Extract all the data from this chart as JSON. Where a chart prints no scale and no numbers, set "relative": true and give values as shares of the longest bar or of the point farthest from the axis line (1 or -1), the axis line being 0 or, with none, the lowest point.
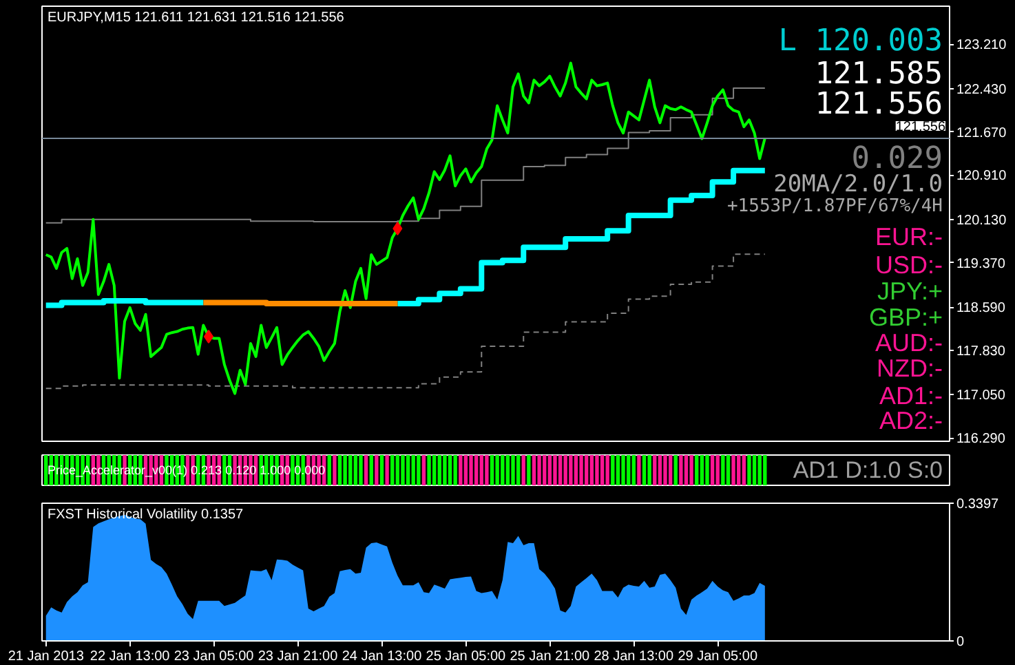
{
  "chart_data": [
    {
      "type": "line",
      "title": "EURJPY,M15  121.611 121.631 121.516 121.556",
      "tick_labels": "y",
      "grid": false,
      "categories": [
        null,
        null,
        null,
        null,
        null,
        null,
        null,
        null,
        null,
        null,
        null,
        null,
        null,
        null,
        null,
        null,
        null,
        null,
        null,
        null,
        null,
        null,
        null,
        null,
        null,
        null,
        null,
        null,
        null,
        null,
        null,
        null,
        null,
        null,
        null,
        null,
        null,
        null,
        null,
        null,
        null,
        null,
        null,
        null,
        null,
        null,
        null,
        null,
        null,
        null,
        null,
        null,
        null,
        null,
        null,
        null,
        null,
        null,
        null,
        null,
        null,
        null,
        null,
        null,
        null,
        null,
        null,
        null,
        null,
        null,
        null,
        null,
        null,
        null,
        null,
        null,
        null,
        null,
        null,
        null,
        null,
        null,
        null,
        null,
        null,
        null,
        null,
        null,
        null,
        null,
        null,
        null,
        null,
        null,
        null,
        null,
        null,
        null,
        null,
        null,
        null,
        null,
        null,
        null,
        null,
        null,
        null,
        null,
        null,
        null,
        null,
        null,
        null,
        null,
        null,
        null,
        null,
        null,
        null,
        null,
        null,
        null,
        null,
        null,
        null,
        null,
        null,
        null,
        null,
        null,
        null,
        null,
        null,
        null,
        null,
        null,
        null,
        null
      ],
      "ylim": [
        116.23,
        123.88
      ],
      "yticks": [
        {
          "value": 123.21,
          "label": "123.210"
        },
        {
          "value": 122.43,
          "label": "122.430"
        },
        {
          "value": 121.67,
          "label": "121.670"
        },
        {
          "value": 120.91,
          "label": "120.910"
        },
        {
          "value": 120.13,
          "label": "120.130"
        },
        {
          "value": 119.37,
          "label": "119.370"
        },
        {
          "value": 118.59,
          "label": "118.590"
        },
        {
          "value": 117.83,
          "label": "117.830"
        },
        {
          "value": 117.05,
          "label": "117.050"
        },
        {
          "value": 116.29,
          "label": "116.290"
        }
      ],
      "ref_lines": [
        {
          "axis": "y",
          "value": 121.556,
          "label": "121.556",
          "color": "#778899"
        }
      ],
      "annotations": [
        "L 120.003",
        "121.585",
        "121.556",
        "0.029",
        "20MA/2.0/1.0",
        "+1553P/1.87PF/67%/4H",
        "EUR:-",
        "USD:-",
        "JPY:+",
        "GBP:+",
        "AUD:-",
        "NZD:-",
        "AD1:-",
        "AD2:-"
      ],
      "series": [
        {
          "type": "step",
          "color": "#808080",
          "line_style": "solid",
          "values": [
            120.07,
            120.07,
            120.07,
            120.13,
            120.13,
            120.13,
            120.13,
            120.13,
            120.13,
            120.13,
            120.13,
            120.13,
            120.13,
            120.13,
            120.13,
            120.13,
            120.13,
            120.13,
            120.13,
            120.13,
            120.13,
            120.13,
            120.13,
            120.13,
            120.13,
            120.13,
            120.13,
            120.13,
            120.13,
            120.13,
            120.13,
            120.13,
            120.13,
            120.13,
            120.13,
            120.13,
            120.13,
            120.13,
            120.13,
            120.1,
            120.1,
            120.1,
            120.1,
            120.1,
            120.1,
            120.1,
            120.1,
            120.1,
            120.1,
            120.1,
            120.1,
            120.09,
            120.09,
            120.09,
            120.09,
            120.09,
            120.09,
            120.09,
            120.09,
            120.09,
            120.09,
            120.09,
            120.09,
            120.09,
            120.09,
            120.09,
            120.09,
            120.1,
            120.1,
            120.1,
            120.1,
            120.15,
            120.15,
            120.15,
            120.15,
            120.29,
            120.29,
            120.29,
            120.29,
            120.36,
            120.36,
            120.36,
            120.36,
            120.82,
            120.82,
            120.82,
            120.82,
            120.82,
            120.82,
            120.82,
            120.82,
            121.06,
            121.06,
            121.06,
            121.06,
            121.08,
            121.08,
            121.08,
            121.08,
            121.22,
            121.22,
            121.22,
            121.22,
            121.27,
            121.27,
            121.27,
            121.27,
            121.38,
            121.38,
            121.38,
            121.38,
            121.66,
            121.66,
            121.66,
            121.66,
            121.69,
            121.69,
            121.69,
            121.69,
            121.92,
            121.92,
            121.92,
            121.92,
            121.97,
            121.97,
            121.97,
            121.97,
            122.26,
            122.26,
            122.26,
            122.26,
            122.44,
            122.44,
            122.44,
            122.44,
            122.44,
            122.44,
            122.44
          ]
        },
        {
          "type": "step",
          "color": "#808080",
          "line_style": "dashed",
          "values": [
            117.16,
            117.16,
            117.16,
            117.2,
            117.2,
            117.2,
            117.2,
            117.22,
            117.22,
            117.22,
            117.22,
            117.22,
            117.22,
            117.22,
            117.22,
            117.22,
            117.22,
            117.22,
            117.22,
            117.22,
            117.22,
            117.22,
            117.22,
            117.22,
            117.22,
            117.22,
            117.22,
            117.22,
            117.22,
            117.22,
            117.22,
            117.2,
            117.2,
            117.2,
            117.2,
            117.2,
            117.2,
            117.2,
            117.2,
            117.2,
            117.2,
            117.2,
            117.2,
            117.2,
            117.2,
            117.2,
            117.2,
            117.17,
            117.17,
            117.17,
            117.17,
            117.17,
            117.17,
            117.17,
            117.17,
            117.17,
            117.17,
            117.17,
            117.17,
            117.17,
            117.17,
            117.17,
            117.17,
            117.17,
            117.17,
            117.17,
            117.17,
            117.17,
            117.17,
            117.17,
            117.17,
            117.24,
            117.24,
            117.24,
            117.24,
            117.36,
            117.36,
            117.36,
            117.36,
            117.45,
            117.45,
            117.45,
            117.45,
            117.9,
            117.9,
            117.9,
            117.9,
            117.9,
            117.9,
            117.9,
            117.9,
            118.15,
            118.15,
            118.15,
            118.15,
            118.15,
            118.15,
            118.15,
            118.15,
            118.33,
            118.33,
            118.33,
            118.33,
            118.33,
            118.33,
            118.33,
            118.33,
            118.48,
            118.48,
            118.48,
            118.48,
            118.73,
            118.73,
            118.73,
            118.73,
            118.78,
            118.78,
            118.78,
            118.78,
            118.99,
            118.99,
            118.99,
            118.99,
            119.03,
            119.03,
            119.03,
            119.03,
            119.31,
            119.31,
            119.31,
            119.31,
            119.52,
            119.52,
            119.52,
            119.52,
            119.52,
            119.52,
            119.52
          ]
        },
        {
          "color": "#00ff00",
          "line_style": "solid",
          "values": [
            119.51,
            119.47,
            119.27,
            119.55,
            119.62,
            119.09,
            119.44,
            118.97,
            119.2,
            120.13,
            118.81,
            119.04,
            119.34,
            118.97,
            117.34,
            118.34,
            118.58,
            118.3,
            118.18,
            118.46,
            117.72,
            117.8,
            117.88,
            118.11,
            118.14,
            118.16,
            118.2,
            118.22,
            118.23,
            117.76,
            118.27,
            118.07,
            118.04,
            118.04,
            117.58,
            117.3,
            117.07,
            117.48,
            117.23,
            117.95,
            117.72,
            118.27,
            117.88,
            118.05,
            118.23,
            117.58,
            117.75,
            117.88,
            118.0,
            118.1,
            118.16,
            118.04,
            117.9,
            117.65,
            117.81,
            117.95,
            118.51,
            118.88,
            118.58,
            119.04,
            119.27,
            118.74,
            119.51,
            119.34,
            119.4,
            119.46,
            119.81,
            119.97,
            120.2,
            120.37,
            120.51,
            120.13,
            120.32,
            120.6,
            120.97,
            120.83,
            121.0,
            121.25,
            120.72,
            120.9,
            121.02,
            120.79,
            120.95,
            121.06,
            121.37,
            121.53,
            122.13,
            121.88,
            121.65,
            122.46,
            122.69,
            122.3,
            122.18,
            122.58,
            122.48,
            122.55,
            122.65,
            122.46,
            122.3,
            122.53,
            122.88,
            122.46,
            122.35,
            122.25,
            122.58,
            122.48,
            122.5,
            122.53,
            122.13,
            121.83,
            121.65,
            122.02,
            121.95,
            121.88,
            122.23,
            122.58,
            122.11,
            121.83,
            122.13,
            122.08,
            122.06,
            122.11,
            122.06,
            122.02,
            121.79,
            121.55,
            121.83,
            122.13,
            122.3,
            122.41,
            122.13,
            122.05,
            122.02,
            121.76,
            121.88,
            121.65,
            121.2,
            121.56
          ]
        },
        {
          "type": "step",
          "color": "#00ffff",
          "line_style": "solid",
          "values": [
            118.62,
            118.62,
            118.62,
            118.67,
            118.67,
            118.67,
            118.67,
            118.67,
            118.67,
            118.67,
            118.67,
            118.7,
            118.7,
            118.7,
            118.7,
            118.7,
            118.7,
            118.7,
            118.7,
            118.67,
            118.67,
            118.67,
            118.67,
            118.67,
            118.67,
            118.67,
            118.67,
            118.67,
            118.67,
            118.67,
            118.67,
            null,
            null,
            null,
            null,
            null,
            null,
            null,
            null,
            null,
            null,
            null,
            null,
            null,
            null,
            null,
            null,
            null,
            null,
            null,
            null,
            null,
            null,
            null,
            null,
            null,
            null,
            null,
            null,
            null,
            null,
            null,
            null,
            null,
            null,
            null,
            null,
            118.65,
            118.65,
            118.65,
            118.65,
            118.72,
            118.72,
            118.72,
            118.72,
            118.83,
            118.83,
            118.83,
            118.83,
            118.91,
            118.91,
            118.91,
            118.91,
            119.37,
            119.37,
            119.37,
            119.37,
            119.41,
            119.41,
            119.41,
            119.41,
            119.64,
            119.64,
            119.64,
            119.64,
            119.64,
            119.64,
            119.64,
            119.64,
            119.79,
            119.79,
            119.79,
            119.79,
            119.79,
            119.79,
            119.79,
            119.79,
            119.93,
            119.93,
            119.93,
            119.93,
            120.2,
            120.2,
            120.2,
            120.2,
            120.2,
            120.2,
            120.2,
            120.2,
            120.47,
            120.47,
            120.47,
            120.47,
            120.55,
            120.55,
            120.55,
            120.55,
            120.79,
            120.79,
            120.79,
            120.79,
            120.99,
            120.99,
            120.99,
            120.99,
            120.99,
            120.99,
            120.99
          ]
        },
        {
          "type": "step",
          "color": "#ff8c00",
          "line_style": "solid",
          "values": [
            null,
            null,
            null,
            null,
            null,
            null,
            null,
            null,
            null,
            null,
            null,
            null,
            null,
            null,
            null,
            null,
            null,
            null,
            null,
            null,
            null,
            null,
            null,
            null,
            null,
            null,
            null,
            null,
            null,
            null,
            118.67,
            118.67,
            118.67,
            118.67,
            118.67,
            118.67,
            118.67,
            118.67,
            118.67,
            118.67,
            118.67,
            118.67,
            118.65,
            118.65,
            118.65,
            118.65,
            118.65,
            118.65,
            118.65,
            118.65,
            118.65,
            118.65,
            118.65,
            118.65,
            118.65,
            118.65,
            118.65,
            118.65,
            118.65,
            118.65,
            118.65,
            118.65,
            118.65,
            118.65,
            118.65,
            118.65,
            118.65,
            118.65,
            null,
            null,
            null,
            null,
            null,
            null,
            null,
            null,
            null,
            null,
            null,
            null,
            null,
            null,
            null,
            null,
            null,
            null,
            null,
            null,
            null,
            null,
            null,
            null,
            null,
            null,
            null,
            null,
            null,
            null,
            null,
            null,
            null,
            null,
            null,
            null,
            null,
            null,
            null,
            null,
            null,
            null,
            null,
            null,
            null,
            null,
            null,
            null,
            null,
            null,
            null,
            null,
            null,
            null,
            null,
            null,
            null,
            null,
            null,
            null,
            null,
            null,
            null,
            null,
            null,
            null,
            null,
            null,
            null,
            null
          ]
        },
        {
          "type": "scatter",
          "color": "#ff0000",
          "marker": "diamond",
          "values": [
            null,
            null,
            null,
            null,
            null,
            null,
            null,
            null,
            null,
            null,
            null,
            null,
            null,
            null,
            null,
            null,
            null,
            null,
            null,
            null,
            null,
            null,
            null,
            null,
            null,
            null,
            null,
            null,
            null,
            null,
            null,
            118.07,
            null,
            null,
            null,
            null,
            null,
            null,
            null,
            null,
            null,
            null,
            null,
            null,
            null,
            null,
            null,
            null,
            null,
            null,
            null,
            null,
            null,
            null,
            null,
            null,
            null,
            null,
            null,
            null,
            null,
            null,
            null,
            null,
            null,
            null,
            null,
            119.97,
            null,
            null,
            null,
            null,
            null,
            null,
            null,
            null,
            null,
            null,
            null,
            null,
            null,
            null,
            null,
            null,
            null,
            null,
            null,
            null,
            null,
            null,
            null,
            null,
            null,
            null,
            null,
            null,
            null,
            null,
            null,
            null,
            null,
            null,
            null,
            null,
            null,
            null,
            null,
            null,
            null,
            null,
            null,
            null,
            null,
            null,
            null,
            null,
            null,
            null,
            null,
            null,
            null,
            null,
            null,
            null,
            null,
            null,
            null,
            null,
            null,
            null,
            null,
            null,
            null,
            null,
            null,
            null,
            null,
            null
          ]
        }
      ]
    },
    {
      "type": "bar",
      "title": "Price_Accelerator_v00(1) 0.213 0.120 1.000 0.000",
      "relative": true,
      "tick_labels": false,
      "grid": false,
      "categories": [
        null,
        null,
        null,
        null,
        null,
        null,
        null,
        null,
        null,
        null,
        null,
        null,
        null,
        null,
        null,
        null,
        null,
        null,
        null,
        null,
        null,
        null,
        null,
        null,
        null,
        null,
        null,
        null,
        null,
        null,
        null,
        null,
        null,
        null,
        null,
        null,
        null,
        null,
        null,
        null,
        null,
        null,
        null,
        null,
        null,
        null,
        null,
        null,
        null,
        null,
        null,
        null,
        null,
        null,
        null,
        null,
        null,
        null,
        null,
        null,
        null,
        null,
        null,
        null,
        null,
        null,
        null,
        null,
        null,
        null,
        null,
        null,
        null,
        null,
        null,
        null,
        null,
        null,
        null,
        null,
        null,
        null,
        null,
        null,
        null,
        null,
        null,
        null,
        null,
        null,
        null,
        null,
        null,
        null,
        null,
        null,
        null,
        null,
        null,
        null,
        null,
        null,
        null,
        null,
        null,
        null,
        null,
        null,
        null,
        null,
        null,
        null,
        null,
        null,
        null,
        null,
        null,
        null,
        null,
        null,
        null,
        null,
        null,
        null,
        null,
        null,
        null,
        null,
        null,
        null,
        null,
        null,
        null,
        null,
        null,
        null,
        null,
        null
      ],
      "values": [
        1,
        1,
        1,
        1,
        1,
        1,
        1,
        1,
        1,
        1,
        1,
        1,
        1,
        1,
        1,
        1,
        1,
        1,
        1,
        1,
        1,
        1,
        1,
        1,
        1,
        1,
        1,
        1,
        1,
        1,
        1,
        1,
        1,
        1,
        1,
        1,
        1,
        1,
        1,
        1,
        1,
        1,
        1,
        1,
        1,
        1,
        1,
        1,
        1,
        1,
        1,
        1,
        1,
        1,
        1,
        1,
        1,
        1,
        1,
        1,
        1,
        1,
        1,
        1,
        1,
        1,
        1,
        1,
        1,
        1,
        1,
        1,
        1,
        1,
        1,
        1,
        1,
        1,
        1,
        1,
        1,
        1,
        1,
        1,
        1,
        1,
        1,
        1,
        1,
        1,
        1,
        1,
        1,
        1,
        1,
        1,
        1,
        1,
        1,
        1,
        1,
        1,
        1,
        1,
        1,
        1,
        1,
        1,
        1,
        1,
        1,
        1,
        1,
        1,
        1,
        1,
        1,
        1,
        1,
        1,
        1,
        1,
        1,
        1,
        1,
        1,
        1,
        1,
        1,
        1,
        1,
        1,
        1,
        1,
        1,
        1,
        1,
        1
      ],
      "colors": [
        "#00ff00",
        "#00ff00",
        "#00ff00",
        "#00ff00",
        "#00ff00",
        "#00ff00",
        "#00ff00",
        "#00ff00",
        "#00ff00",
        "#ff1493",
        "#ff1493",
        "#00ff00",
        "#00ff00",
        "#00ff00",
        "#00ff00",
        "#ff1493",
        "#00ff00",
        "#00ff00",
        "#00ff00",
        "#ff1493",
        "#ff1493",
        "#ff1493",
        "#ff1493",
        "#00ff00",
        "#00ff00",
        "#00ff00",
        "#00ff00",
        "#ff1493",
        "#ff1493",
        "#00ff00",
        "#00ff00",
        "#ff1493",
        "#ff1493",
        "#ff1493",
        "#00ff00",
        "#00ff00",
        "#ff1493",
        "#ff1493",
        "#ff1493",
        "#ff1493",
        "#ff1493",
        "#00ff00",
        "#00ff00",
        "#00ff00",
        "#00ff00",
        "#ff1493",
        "#ff1493",
        "#00ff00",
        "#00ff00",
        "#00ff00",
        "#ff1493",
        "#ff1493",
        "#ff1493",
        "#ff1493",
        "#00ff00",
        "#ff1493",
        "#00ff00",
        "#00ff00",
        "#00ff00",
        "#00ff00",
        "#00ff00",
        "#ff1493",
        "#00ff00",
        "#ff1493",
        "#00ff00",
        "#ff1493",
        "#00ff00",
        "#00ff00",
        "#00ff00",
        "#00ff00",
        "#00ff00",
        "#00ff00",
        "#ff1493",
        "#00ff00",
        "#00ff00",
        "#00ff00",
        "#00ff00",
        "#00ff00",
        "#00ff00",
        "#ff1493",
        "#ff1493",
        "#ff1493",
        "#ff1493",
        "#ff1493",
        "#ff1493",
        "#00ff00",
        "#00ff00",
        "#00ff00",
        "#00ff00",
        "#00ff00",
        "#00ff00",
        "#ff1493",
        "#00ff00",
        "#ff1493",
        "#ff1493",
        "#ff1493",
        "#ff1493",
        "#ff1493",
        "#ff1493",
        "#ff1493",
        "#ff1493",
        "#ff1493",
        "#ff1493",
        "#ff1493",
        "#ff1493",
        "#ff1493",
        "#ff1493",
        "#ff1493",
        "#00ff00",
        "#00ff00",
        "#00ff00",
        "#00ff00",
        "#00ff00",
        "#ff1493",
        "#00ff00",
        "#00ff00",
        "#ff1493",
        "#ff1493",
        "#ff1493",
        "#ff1493",
        "#00ff00",
        "#ff1493",
        "#ff1493",
        "#ff1493",
        "#00ff00",
        "#00ff00",
        "#00ff00",
        "#ff1493",
        "#ff1493",
        "#00ff00",
        "#00ff00",
        "#ff1493",
        "#ff1493",
        "#ff1493",
        "#00ff00",
        "#00ff00",
        "#00ff00",
        "#00ff00"
      ],
      "annotations": [
        "AD1 D:1.0 S:0"
      ]
    },
    {
      "type": "area",
      "title": "FXST Historical Volatility 0.1357",
      "grid": false,
      "ylim": [
        0,
        0.3397
      ],
      "yticks": [
        0,
        0.3397
      ],
      "categories": [
        "21 Jan 2013",
        null,
        null,
        null,
        null,
        null,
        null,
        null,
        null,
        null,
        null,
        null,
        null,
        null,
        null,
        null,
        "22 Jan 13:00",
        null,
        null,
        null,
        null,
        null,
        null,
        null,
        null,
        null,
        null,
        null,
        null,
        null,
        null,
        null,
        "23 Jan 05:00",
        null,
        null,
        null,
        null,
        null,
        null,
        null,
        null,
        null,
        null,
        null,
        null,
        null,
        null,
        null,
        "23 Jan 21:00",
        null,
        null,
        null,
        null,
        null,
        null,
        null,
        null,
        null,
        null,
        null,
        null,
        null,
        null,
        null,
        "24 Jan 13:00",
        null,
        null,
        null,
        null,
        null,
        null,
        null,
        null,
        null,
        null,
        null,
        null,
        null,
        null,
        null,
        "25 Jan 05:00",
        null,
        null,
        null,
        null,
        null,
        null,
        null,
        null,
        null,
        null,
        null,
        null,
        null,
        null,
        null,
        "25 Jan 21:00",
        null,
        null,
        null,
        null,
        null,
        null,
        null,
        null,
        null,
        null,
        null,
        null,
        null,
        null,
        null,
        "28 Jan 13:00",
        null,
        null,
        null,
        null,
        null,
        null,
        null,
        null,
        null,
        null,
        null,
        null,
        null,
        null,
        null,
        "29 Jan 05:00",
        null,
        null,
        null,
        null,
        null,
        null,
        null,
        null,
        null
      ],
      "series": [
        {
          "color": "#1e90ff",
          "values": [
            0.062,
            0.083,
            0.075,
            0.07,
            0.096,
            0.11,
            0.12,
            0.137,
            0.145,
            0.281,
            0.29,
            0.295,
            0.3,
            0.305,
            0.308,
            0.311,
            0.306,
            0.302,
            0.3,
            0.289,
            0.2,
            0.19,
            0.182,
            0.166,
            0.139,
            0.11,
            0.091,
            0.067,
            0.054,
            0.099,
            0.099,
            0.099,
            0.099,
            0.099,
            0.086,
            0.09,
            0.094,
            0.103,
            0.112,
            0.174,
            0.173,
            0.172,
            0.177,
            0.15,
            0.201,
            0.2,
            0.198,
            0.188,
            0.181,
            0.174,
            0.08,
            0.073,
            0.08,
            0.086,
            0.109,
            0.118,
            0.172,
            0.175,
            0.177,
            0.166,
            0.168,
            0.23,
            0.241,
            0.243,
            0.238,
            0.233,
            0.193,
            0.161,
            0.137,
            0.137,
            0.137,
            0.145,
            0.12,
            0.118,
            0.139,
            0.134,
            0.129,
            0.152,
            0.154,
            0.156,
            0.158,
            0.159,
            0.123,
            0.118,
            0.12,
            0.123,
            0.102,
            0.15,
            0.244,
            0.241,
            0.259,
            0.236,
            0.241,
            0.241,
            0.177,
            0.166,
            0.15,
            0.129,
            0.075,
            0.07,
            0.086,
            0.134,
            0.145,
            0.155,
            0.166,
            0.15,
            0.123,
            0.123,
            0.123,
            0.107,
            0.131,
            0.139,
            0.136,
            0.134,
            0.148,
            0.131,
            0.134,
            0.163,
            0.166,
            0.15,
            0.131,
            0.08,
            0.064,
            0.102,
            0.112,
            0.12,
            0.129,
            0.148,
            0.134,
            0.125,
            0.12,
            0.099,
            0.105,
            0.112,
            0.112,
            0.118,
            0.143,
            0.136
          ]
        }
      ]
    }
  ]
}
